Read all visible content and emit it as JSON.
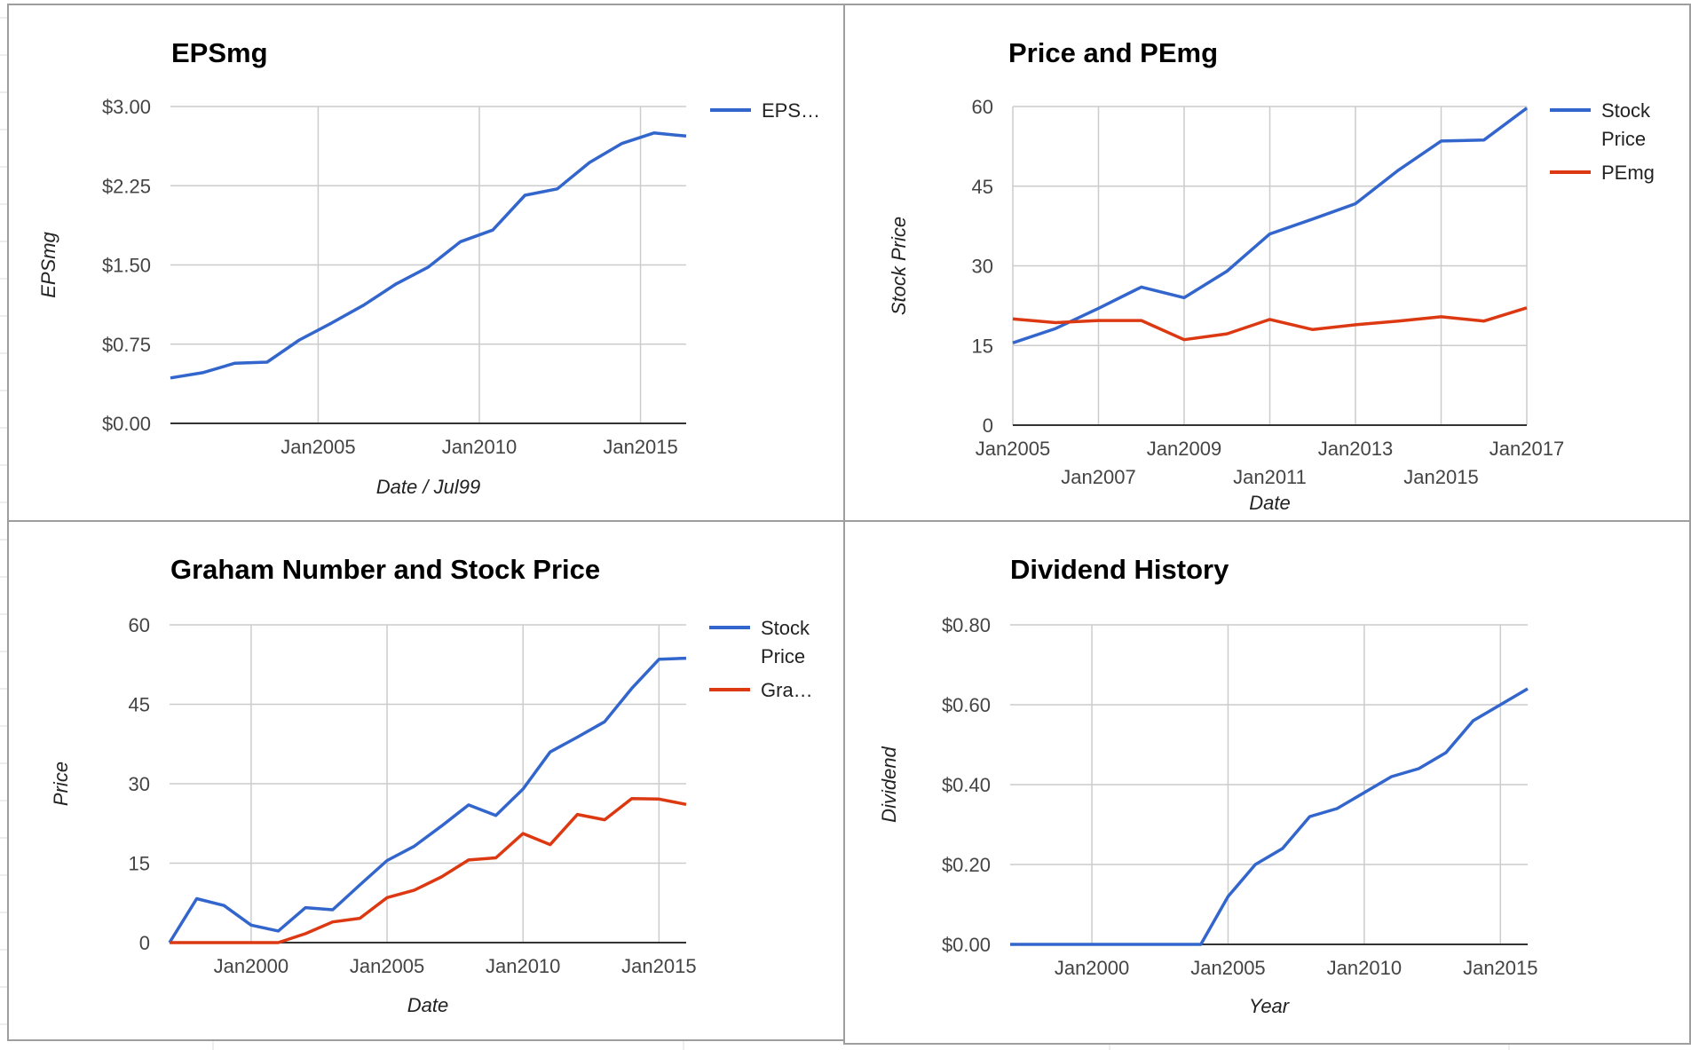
{
  "theme": {
    "series_blue": "#3366cc",
    "series_red": "#dc3912",
    "grid_color": "#cccccc",
    "baseline_color": "#333333",
    "panel_border": "#9e9e9e"
  },
  "chart_data": [
    {
      "id": "epsmg",
      "type": "line",
      "title": "EPSmg",
      "xlabel": "Date / Jul99",
      "ylabel": "EPSmg",
      "xlim": [
        "2000-06",
        "2016-06"
      ],
      "ylim": [
        0,
        3
      ],
      "yticks": [
        0,
        0.75,
        1.5,
        2.25,
        3
      ],
      "ytick_labels": [
        "$0.00",
        "$0.75",
        "$1.50",
        "$2.25",
        "$3.00"
      ],
      "xticks": [
        "2005-01",
        "2010-01",
        "2015-01"
      ],
      "xtick_labels": [
        "Jan2005",
        "Jan2010",
        "Jan2015"
      ],
      "grid": true,
      "legend_position": "right",
      "series": [
        {
          "name": "EPS…",
          "color": "#3366cc",
          "x": [
            "2000-06",
            "2001-06",
            "2002-06",
            "2003-06",
            "2004-06",
            "2005-06",
            "2006-06",
            "2007-06",
            "2008-06",
            "2009-06",
            "2010-06",
            "2011-06",
            "2012-06",
            "2013-06",
            "2014-06",
            "2015-06",
            "2016-06"
          ],
          "y": [
            0.43,
            0.48,
            0.57,
            0.58,
            0.79,
            0.95,
            1.12,
            1.32,
            1.48,
            1.72,
            1.83,
            2.16,
            2.22,
            2.47,
            2.65,
            2.75,
            2.72
          ]
        }
      ]
    },
    {
      "id": "price-pemg",
      "type": "line",
      "title": "Price and PEmg",
      "xlabel": "Date",
      "ylabel": "Stock Price",
      "xlim": [
        "2005-01",
        "2017-01"
      ],
      "ylim": [
        0,
        60
      ],
      "yticks": [
        0,
        15,
        30,
        45,
        60
      ],
      "ytick_labels": [
        "0",
        "15",
        "30",
        "45",
        "60"
      ],
      "xticks": [
        "2005-01",
        "2007-01",
        "2009-01",
        "2011-01",
        "2013-01",
        "2015-01",
        "2017-01"
      ],
      "xtick_labels": [
        "Jan2005",
        "Jan2007",
        "Jan2009",
        "Jan2011",
        "Jan2013",
        "Jan2015",
        "Jan2017"
      ],
      "grid": true,
      "legend_position": "right",
      "series": [
        {
          "name": "Stock Price",
          "color": "#3366cc",
          "x": [
            "2005-01",
            "2006-01",
            "2007-01",
            "2008-01",
            "2009-01",
            "2010-01",
            "2011-01",
            "2012-01",
            "2013-01",
            "2014-01",
            "2015-01",
            "2016-01",
            "2017-01"
          ],
          "y": [
            15.5,
            18.2,
            22.0,
            26.0,
            24.0,
            29.0,
            36.0,
            38.8,
            41.7,
            48.0,
            53.5,
            53.7,
            59.7
          ]
        },
        {
          "name": "PEmg",
          "color": "#dc3912",
          "x": [
            "2005-01",
            "2006-01",
            "2007-01",
            "2008-01",
            "2009-01",
            "2010-01",
            "2011-01",
            "2012-01",
            "2013-01",
            "2014-01",
            "2015-01",
            "2016-01",
            "2017-01"
          ],
          "y": [
            20.0,
            19.3,
            19.7,
            19.7,
            16.1,
            17.2,
            19.9,
            18.0,
            18.9,
            19.6,
            20.4,
            19.6,
            22.1
          ]
        }
      ]
    },
    {
      "id": "graham",
      "type": "line",
      "title": "Graham Number and Stock Price",
      "xlabel": "Date",
      "ylabel": "Price",
      "xlim": [
        "1997-01",
        "2016-01"
      ],
      "ylim": [
        0,
        60
      ],
      "yticks": [
        0,
        15,
        30,
        45,
        60
      ],
      "ytick_labels": [
        "0",
        "15",
        "30",
        "45",
        "60"
      ],
      "xticks": [
        "2000-01",
        "2005-01",
        "2010-01",
        "2015-01"
      ],
      "xtick_labels": [
        "Jan2000",
        "Jan2005",
        "Jan2010",
        "Jan2015"
      ],
      "grid": true,
      "legend_position": "right",
      "series": [
        {
          "name": "Stock Price",
          "color": "#3366cc",
          "x": [
            "1997-01",
            "1998-01",
            "1999-01",
            "2000-01",
            "2001-01",
            "2002-01",
            "2003-01",
            "2004-01",
            "2005-01",
            "2006-01",
            "2007-01",
            "2008-01",
            "2009-01",
            "2010-01",
            "2011-01",
            "2012-01",
            "2013-01",
            "2014-01",
            "2015-01",
            "2016-01"
          ],
          "y": [
            0,
            8.3,
            7.0,
            3.3,
            2.2,
            6.6,
            6.2,
            10.9,
            15.5,
            18.2,
            22.0,
            26.0,
            24.0,
            29.0,
            36.0,
            38.8,
            41.7,
            48.0,
            53.5,
            53.7
          ]
        },
        {
          "name": "Gra…",
          "color": "#dc3912",
          "x": [
            "1997-01",
            "1998-01",
            "1999-01",
            "2000-01",
            "2001-01",
            "2002-01",
            "2003-01",
            "2004-01",
            "2005-01",
            "2006-01",
            "2007-01",
            "2008-01",
            "2009-01",
            "2010-01",
            "2011-01",
            "2012-01",
            "2013-01",
            "2014-01",
            "2015-01",
            "2016-01"
          ],
          "y": [
            0,
            0,
            0,
            0,
            0,
            1.7,
            3.9,
            4.6,
            8.5,
            9.9,
            12.4,
            15.6,
            16.0,
            20.6,
            18.5,
            24.2,
            23.2,
            27.2,
            27.1,
            26.1
          ]
        }
      ]
    },
    {
      "id": "dividend",
      "type": "line",
      "title": "Dividend History",
      "xlabel": "Year",
      "ylabel": "Dividend",
      "xlim": [
        "1997-01",
        "2016-01"
      ],
      "ylim": [
        0,
        0.8
      ],
      "yticks": [
        0,
        0.2,
        0.4,
        0.6,
        0.8
      ],
      "ytick_labels": [
        "$0.00",
        "$0.20",
        "$0.40",
        "$0.60",
        "$0.80"
      ],
      "xticks": [
        "2000-01",
        "2005-01",
        "2010-01",
        "2015-01"
      ],
      "xtick_labels": [
        "Jan2000",
        "Jan2005",
        "Jan2010",
        "Jan2015"
      ],
      "grid": true,
      "legend_position": "none",
      "series": [
        {
          "name": "",
          "color": "#3366cc",
          "x": [
            "1997-01",
            "1998-01",
            "1999-01",
            "2000-01",
            "2001-01",
            "2002-01",
            "2003-01",
            "2004-01",
            "2005-01",
            "2006-01",
            "2007-01",
            "2008-01",
            "2009-01",
            "2010-01",
            "2011-01",
            "2012-01",
            "2013-01",
            "2014-01",
            "2015-01",
            "2016-01"
          ],
          "y": [
            0,
            0,
            0,
            0,
            0,
            0,
            0,
            0,
            0.12,
            0.2,
            0.24,
            0.32,
            0.34,
            0.38,
            0.42,
            0.44,
            0.48,
            0.56,
            0.6,
            0.64
          ]
        }
      ]
    }
  ]
}
